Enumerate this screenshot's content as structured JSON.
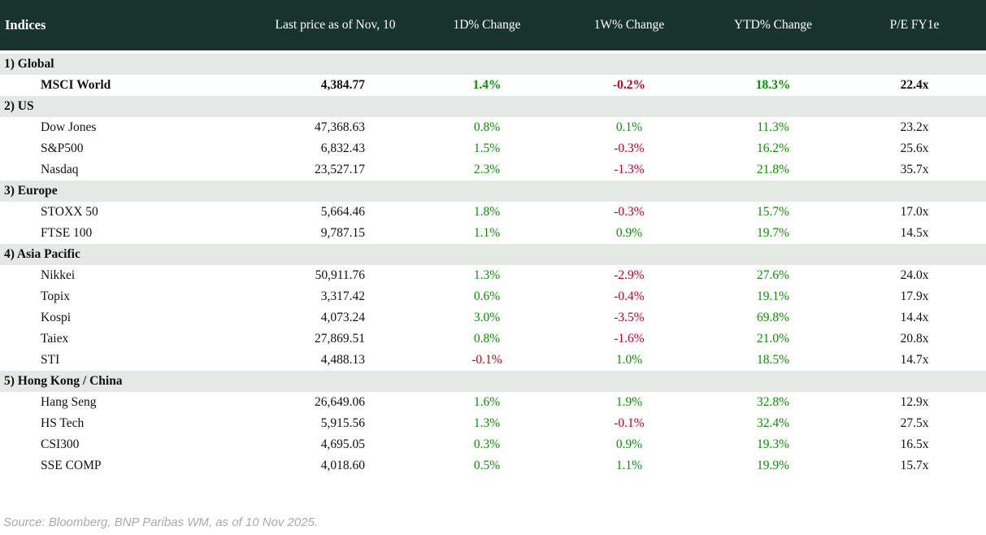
{
  "table": {
    "columns": [
      "Indices",
      "Last price as of Nov, 10",
      "1D% Change",
      "1W% Change",
      "YTD% Change",
      "P/E FY1e"
    ],
    "sections": [
      {
        "label": "1) Global",
        "rows": [
          {
            "name": "MSCI World",
            "price": "4,384.77",
            "d1": "1.4%",
            "w1": "-0.2%",
            "ytd": "18.3%",
            "pe": "22.4x",
            "bold": true
          }
        ]
      },
      {
        "label": "2) US",
        "rows": [
          {
            "name": "Dow Jones",
            "price": "47,368.63",
            "d1": "0.8%",
            "w1": "0.1%",
            "ytd": "11.3%",
            "pe": "23.2x",
            "bold": false
          },
          {
            "name": "S&P500",
            "price": "6,832.43",
            "d1": "1.5%",
            "w1": "-0.3%",
            "ytd": "16.2%",
            "pe": "25.6x",
            "bold": false
          },
          {
            "name": "Nasdaq",
            "price": "23,527.17",
            "d1": "2.3%",
            "w1": "-1.3%",
            "ytd": "21.8%",
            "pe": "35.7x",
            "bold": false
          }
        ]
      },
      {
        "label": "3) Europe",
        "rows": [
          {
            "name": "STOXX 50",
            "price": "5,664.46",
            "d1": "1.8%",
            "w1": "-0.3%",
            "ytd": "15.7%",
            "pe": "17.0x",
            "bold": false
          },
          {
            "name": "FTSE 100",
            "price": "9,787.15",
            "d1": "1.1%",
            "w1": "0.9%",
            "ytd": "19.7%",
            "pe": "14.5x",
            "bold": false
          }
        ]
      },
      {
        "label": "4) Asia Pacific",
        "rows": [
          {
            "name": "Nikkei",
            "price": "50,911.76",
            "d1": "1.3%",
            "w1": "-2.9%",
            "ytd": "27.6%",
            "pe": "24.0x",
            "bold": false
          },
          {
            "name": "Topix",
            "price": "3,317.42",
            "d1": "0.6%",
            "w1": "-0.4%",
            "ytd": "19.1%",
            "pe": "17.9x",
            "bold": false
          },
          {
            "name": "Kospi",
            "price": "4,073.24",
            "d1": "3.0%",
            "w1": "-3.5%",
            "ytd": "69.8%",
            "pe": "14.4x",
            "bold": false
          },
          {
            "name": "Taiex",
            "price": "27,869.51",
            "d1": "0.8%",
            "w1": "-1.6%",
            "ytd": "21.0%",
            "pe": "20.8x",
            "bold": false
          },
          {
            "name": "STI",
            "price": "4,488.13",
            "d1": "-0.1%",
            "w1": "1.0%",
            "ytd": "18.5%",
            "pe": "14.7x",
            "bold": false
          }
        ]
      },
      {
        "label": "5) Hong Kong / China",
        "rows": [
          {
            "name": "Hang Seng",
            "price": "26,649.06",
            "d1": "1.6%",
            "w1": "1.9%",
            "ytd": "32.8%",
            "pe": "12.9x",
            "bold": false
          },
          {
            "name": "HS Tech",
            "price": "5,915.56",
            "d1": "1.3%",
            "w1": "-0.1%",
            "ytd": "32.4%",
            "pe": "27.5x",
            "bold": false
          },
          {
            "name": "CSI300",
            "price": "4,695.05",
            "d1": "0.3%",
            "w1": "0.9%",
            "ytd": "19.3%",
            "pe": "16.5x",
            "bold": false
          },
          {
            "name": "SSE COMP",
            "price": "4,018.60",
            "d1": "0.5%",
            "w1": "1.1%",
            "ytd": "19.9%",
            "pe": "15.7x",
            "bold": false
          }
        ]
      }
    ]
  },
  "footer": {
    "source": "Source: Bloomberg, BNP Paribas WM, as of 10 Nov 2025."
  },
  "colors": {
    "header_bg": "#19332e",
    "section_bg": "#e5e9e6",
    "positive": "#089000",
    "negative": "#c00020"
  }
}
